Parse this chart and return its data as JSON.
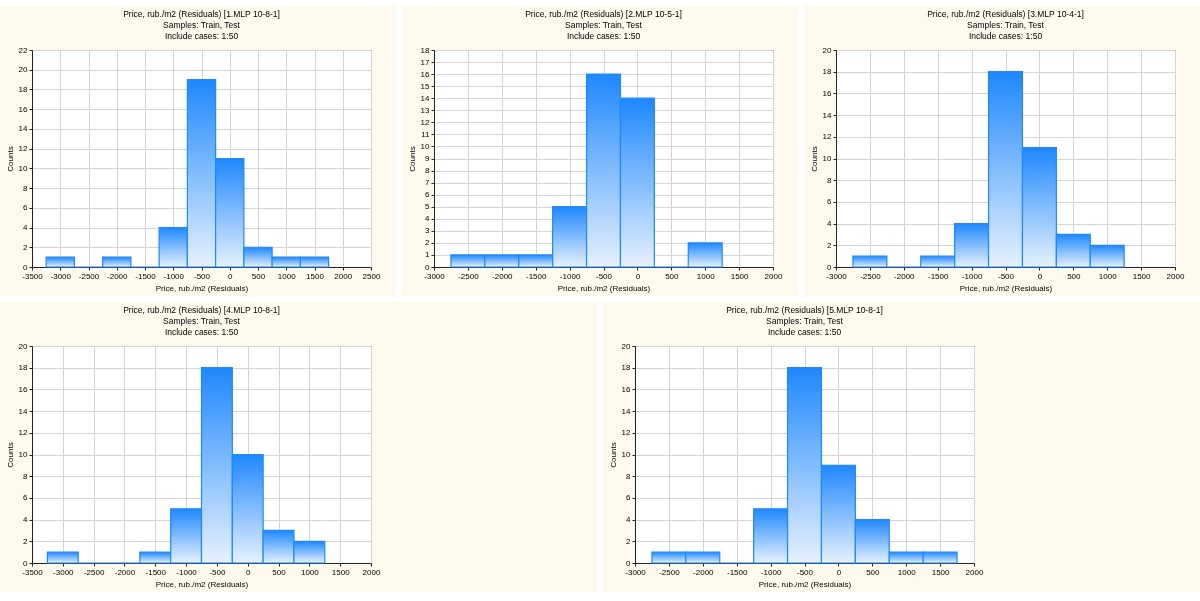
{
  "chart_data": [
    {
      "type": "histogram",
      "title": "Price, rub./m2 (Residuals) [1.MLP 10-8-1]",
      "subtitle": "Samples: Train, Test",
      "annotations": [
        "Include cases: 1:50"
      ],
      "xlabel": "Price, rub./m2 (Residuals)",
      "ylabel": "Counts",
      "color": "#1e88ff",
      "grid": true,
      "bins": [
        -3250,
        -2750,
        -2250,
        -1750,
        -1250,
        -750,
        -250,
        250,
        750,
        1250,
        1750
      ],
      "values": [
        1,
        0,
        1,
        0,
        4,
        19,
        11,
        2,
        1,
        1
      ],
      "xlim": [
        -3500,
        2500
      ],
      "xticks": [
        -3500,
        -3000,
        -2500,
        -2000,
        -1500,
        -1000,
        -500,
        0,
        500,
        1000,
        1500,
        2000,
        2500
      ],
      "ylim": [
        0,
        22
      ],
      "yticks": [
        0,
        2,
        4,
        6,
        8,
        10,
        12,
        14,
        16,
        18,
        20,
        22
      ]
    },
    {
      "type": "histogram",
      "title": "Price, rub./m2 (Residuals) [2.MLP 10-5-1]",
      "subtitle": "Samples: Train, Test",
      "annotations": [
        "Include cases: 1:50"
      ],
      "xlabel": "Price, rub./m2 (Residuals)",
      "ylabel": "Counts",
      "color": "#1e88ff",
      "grid": true,
      "bins": [
        -2750,
        -2250,
        -1750,
        -1250,
        -750,
        -250,
        250,
        750,
        1250
      ],
      "values": [
        1,
        1,
        1,
        5,
        16,
        14,
        0,
        2
      ],
      "xlim": [
        -3000,
        2000
      ],
      "xticks": [
        -3000,
        -2500,
        -2000,
        -1500,
        -1000,
        -500,
        0,
        500,
        1000,
        1500,
        2000
      ],
      "ylim": [
        0,
        18
      ],
      "yticks": [
        0,
        1,
        2,
        3,
        4,
        5,
        6,
        7,
        8,
        9,
        10,
        11,
        12,
        13,
        14,
        15,
        16,
        17,
        18
      ]
    },
    {
      "type": "histogram",
      "title": "Price, rub./m2 (Residuals) [3.MLP 10-4-1]",
      "subtitle": "Samples: Train, Test",
      "annotations": [
        "Include cases: 1:50"
      ],
      "xlabel": "Price, rub./m2 (Residuals)",
      "ylabel": "Counts",
      "color": "#1e88ff",
      "grid": true,
      "bins": [
        -2750,
        -2250,
        -1750,
        -1250,
        -750,
        -250,
        250,
        750,
        1250
      ],
      "values": [
        1,
        0,
        1,
        4,
        18,
        11,
        3,
        2
      ],
      "xlim": [
        -3000,
        2000
      ],
      "xticks": [
        -3000,
        -2500,
        -2000,
        -1500,
        -1000,
        -500,
        0,
        500,
        1000,
        1500,
        2000
      ],
      "ylim": [
        0,
        20
      ],
      "yticks": [
        0,
        2,
        4,
        6,
        8,
        10,
        12,
        14,
        16,
        18,
        20
      ]
    },
    {
      "type": "histogram",
      "title": "Price, rub./m2 (Residuals) [4.MLP 10-8-1]",
      "subtitle": "Samples: Train, Test",
      "annotations": [
        "Include cases: 1:50"
      ],
      "xlabel": "Price, rub./m2 (Residuals)",
      "ylabel": "Counts",
      "color": "#1e88ff",
      "grid": true,
      "bins": [
        -3250,
        -2750,
        -2250,
        -1750,
        -1250,
        -750,
        -250,
        250,
        750,
        1250
      ],
      "values": [
        1,
        0,
        0,
        1,
        5,
        18,
        10,
        3,
        2
      ],
      "xlim": [
        -3500,
        2000
      ],
      "xticks": [
        -3500,
        -3000,
        -2500,
        -2000,
        -1500,
        -1000,
        -500,
        0,
        500,
        1000,
        1500,
        2000
      ],
      "ylim": [
        0,
        20
      ],
      "yticks": [
        0,
        2,
        4,
        6,
        8,
        10,
        12,
        14,
        16,
        18,
        20
      ]
    },
    {
      "type": "histogram",
      "title": "Price, rub./m2 (Residuals) [5.MLP 10-8-1]",
      "subtitle": "Samples: Train, Test",
      "annotations": [
        "Include cases: 1:50"
      ],
      "xlabel": "Price, rub./m2 (Residuals)",
      "ylabel": "Counts",
      "color": "#1e88ff",
      "grid": true,
      "bins": [
        -2750,
        -2250,
        -1750,
        -1250,
        -750,
        -250,
        250,
        750,
        1250,
        1750
      ],
      "values": [
        1,
        1,
        0,
        5,
        18,
        9,
        4,
        1,
        1
      ],
      "xlim": [
        -3000,
        2000
      ],
      "xticks": [
        -3000,
        -2500,
        -2000,
        -1500,
        -1000,
        -500,
        0,
        500,
        1000,
        1500,
        2000
      ],
      "ylim": [
        0,
        20
      ],
      "yticks": [
        0,
        2,
        4,
        6,
        8,
        10,
        12,
        14,
        16,
        18,
        20
      ]
    }
  ]
}
